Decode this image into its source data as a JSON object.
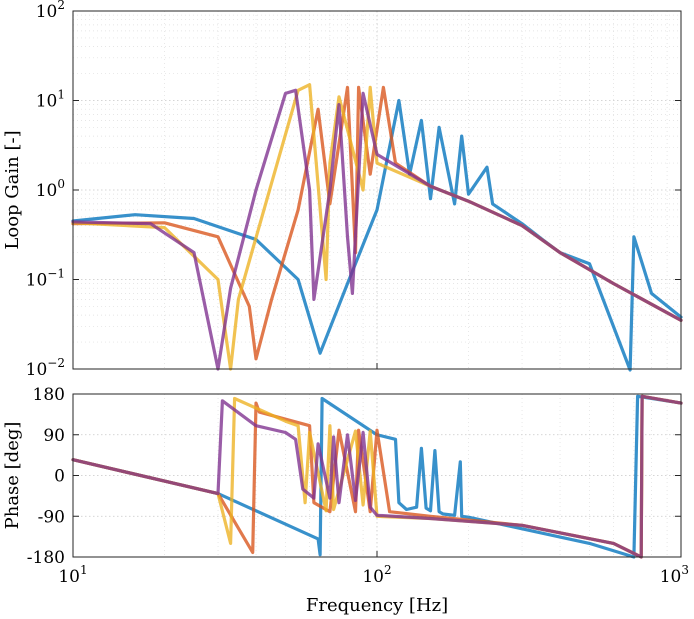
{
  "chart_data": [
    {
      "type": "line",
      "panel": "magnitude",
      "xlabel": "",
      "ylabel": "Loop Gain [-]",
      "xscale": "log",
      "yscale": "log",
      "xlim": [
        10,
        1000
      ],
      "ylim": [
        0.01,
        100
      ],
      "grid": true,
      "x_ticks": [
        10,
        100,
        1000
      ],
      "y_ticks": [
        0.01,
        0.1,
        1,
        10,
        100
      ],
      "y_tick_labels": [
        {
          "base": "10",
          "exp": "−2"
        },
        {
          "base": "10",
          "exp": "−1"
        },
        {
          "base": "10",
          "exp": "0"
        },
        {
          "base": "10",
          "exp": "1"
        },
        {
          "base": "10",
          "exp": "2"
        }
      ],
      "series": [
        {
          "color": "#0072BD",
          "x": [
            10,
            16,
            25,
            40,
            55,
            65,
            80,
            100,
            118,
            128,
            140,
            150,
            160,
            180,
            190,
            200,
            230,
            240,
            300,
            350,
            400,
            500,
            680,
            700,
            800,
            1000
          ],
          "y": [
            0.45,
            0.53,
            0.48,
            0.28,
            0.1,
            0.015,
            0.09,
            0.6,
            10,
            1.5,
            6,
            0.8,
            5,
            0.7,
            4,
            0.9,
            1.8,
            0.7,
            0.42,
            0.28,
            0.2,
            0.15,
            0.004,
            0.3,
            0.07,
            0.038
          ]
        },
        {
          "color": "#D95319",
          "x": [
            10,
            20,
            30,
            38,
            40,
            45,
            55,
            64,
            70,
            80,
            85,
            87,
            95,
            105,
            115,
            150,
            200,
            300,
            400,
            600,
            1000
          ],
          "y": [
            0.42,
            0.43,
            0.3,
            0.05,
            0.013,
            0.06,
            0.6,
            8,
            0.7,
            14,
            0.2,
            14,
            1.5,
            14,
            2.0,
            1.1,
            0.75,
            0.4,
            0.2,
            0.09,
            0.035
          ]
        },
        {
          "color": "#EDB120",
          "x": [
            10,
            20,
            30,
            33,
            35,
            45,
            55,
            60,
            68,
            70,
            75,
            90,
            95,
            100,
            150,
            200,
            300,
            400,
            600,
            1000
          ],
          "y": [
            0.43,
            0.38,
            0.1,
            0.01,
            0.06,
            1.2,
            13,
            15,
            0.1,
            2,
            11,
            1.0,
            14,
            2.0,
            1.1,
            0.75,
            0.4,
            0.2,
            0.09,
            0.035
          ]
        },
        {
          "color": "#7E2F8E",
          "x": [
            10,
            18,
            25,
            30,
            33,
            40,
            50,
            54,
            60,
            62,
            70,
            75,
            80,
            83,
            90,
            100,
            150,
            200,
            300,
            400,
            600,
            1000
          ],
          "y": [
            0.44,
            0.42,
            0.2,
            0.01,
            0.08,
            1.0,
            12,
            13,
            1,
            0.06,
            1,
            9,
            0.3,
            0.07,
            12,
            2.5,
            1.1,
            0.75,
            0.4,
            0.2,
            0.09,
            0.035
          ]
        }
      ]
    },
    {
      "type": "line",
      "panel": "phase",
      "xlabel": "Frequency [Hz]",
      "ylabel": "Phase [deg]",
      "xscale": "log",
      "yscale": "linear",
      "xlim": [
        10,
        1000
      ],
      "ylim": [
        -180,
        180
      ],
      "grid": true,
      "x_ticks": [
        10,
        100,
        1000
      ],
      "x_tick_labels": [
        {
          "base": "10",
          "exp": "1"
        },
        {
          "base": "10",
          "exp": "2"
        },
        {
          "base": "10",
          "exp": "3"
        }
      ],
      "y_ticks": [
        -180,
        -90,
        0,
        90,
        180
      ],
      "y_tick_labels": [
        "-180",
        "-90",
        "0",
        "90",
        "180"
      ],
      "series": [
        {
          "color": "#0072BD",
          "x": [
            10,
            30,
            64,
            65,
            66,
            100,
            115,
            118,
            125,
            135,
            140,
            145,
            150,
            155,
            160,
            165,
            180,
            188,
            190,
            200,
            500,
            700,
            720,
            1000
          ],
          "y": [
            35,
            -40,
            -140,
            -175,
            170,
            90,
            80,
            -60,
            -75,
            -70,
            60,
            -72,
            -78,
            55,
            -80,
            -85,
            -88,
            30,
            -90,
            -92,
            -150,
            -180,
            175,
            160
          ]
        },
        {
          "color": "#D95319",
          "x": [
            10,
            30,
            39,
            40,
            41,
            60,
            62,
            70,
            75,
            85,
            87,
            95,
            100,
            110,
            150,
            300,
            600,
            740,
            745,
            1000
          ],
          "y": [
            35,
            -40,
            -170,
            160,
            140,
            110,
            -60,
            -80,
            100,
            -80,
            100,
            -80,
            100,
            -80,
            -90,
            -110,
            -150,
            -180,
            175,
            160
          ]
        },
        {
          "color": "#EDB120",
          "x": [
            10,
            30,
            33,
            34,
            50,
            55,
            58,
            60,
            68,
            70,
            72,
            85,
            90,
            95,
            100,
            150,
            300,
            600,
            740,
            745,
            1000
          ],
          "y": [
            35,
            -40,
            -150,
            170,
            120,
            110,
            -60,
            95,
            -78,
            110,
            -75,
            98,
            -65,
            98,
            -90,
            -95,
            -110,
            -150,
            -180,
            175,
            160
          ]
        },
        {
          "color": "#7E2F8E",
          "x": [
            10,
            30,
            31,
            40,
            50,
            54,
            57,
            62,
            64,
            70,
            72,
            75,
            80,
            85,
            90,
            95,
            100,
            150,
            300,
            600,
            740,
            745,
            1000
          ],
          "y": [
            35,
            -40,
            165,
            110,
            95,
            80,
            -30,
            -50,
            70,
            -50,
            85,
            -60,
            90,
            -55,
            95,
            -70,
            -88,
            -95,
            -110,
            -150,
            -180,
            175,
            160
          ]
        }
      ]
    }
  ]
}
